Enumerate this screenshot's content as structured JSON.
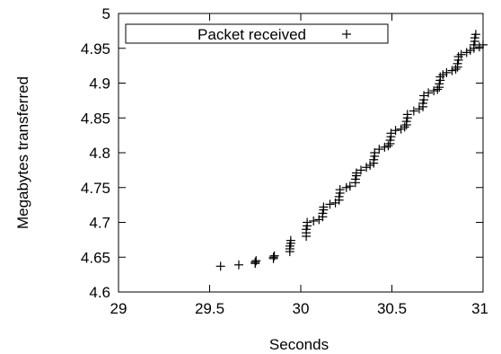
{
  "chart_data": {
    "type": "scatter",
    "title": "",
    "xlabel": "Seconds",
    "ylabel": "Megabytes transferred",
    "xlim": [
      29,
      31
    ],
    "ylim": [
      4.6,
      5.0
    ],
    "xticks": [
      "29",
      "29.5",
      "30",
      "30.5",
      "31"
    ],
    "xtick_values": [
      29,
      29.5,
      30,
      30.5,
      31
    ],
    "yticks": [
      "4.6",
      "4.65",
      "4.7",
      "4.75",
      "4.8",
      "4.85",
      "4.9",
      "4.95",
      "5"
    ],
    "ytick_values": [
      4.6,
      4.65,
      4.7,
      4.75,
      4.8,
      4.85,
      4.9,
      4.95,
      5.0
    ],
    "grid": false,
    "legend_position": "top",
    "series": [
      {
        "name": "Packet received",
        "marker": "+",
        "color": "#000000",
        "points": [
          [
            29.56,
            4.637
          ],
          [
            29.66,
            4.639
          ],
          [
            29.75,
            4.641
          ],
          [
            29.75,
            4.643
          ],
          [
            29.755,
            4.645
          ],
          [
            29.85,
            4.648
          ],
          [
            29.85,
            4.65
          ],
          [
            29.855,
            4.652
          ],
          [
            29.94,
            4.658
          ],
          [
            29.94,
            4.662
          ],
          [
            29.94,
            4.666
          ],
          [
            29.945,
            4.67
          ],
          [
            29.945,
            4.674
          ],
          [
            30.03,
            4.68
          ],
          [
            30.03,
            4.685
          ],
          [
            30.03,
            4.69
          ],
          [
            30.035,
            4.695
          ],
          [
            30.035,
            4.7
          ],
          [
            30.07,
            4.702
          ],
          [
            30.1,
            4.704
          ],
          [
            30.12,
            4.708
          ],
          [
            30.12,
            4.713
          ],
          [
            30.125,
            4.718
          ],
          [
            30.125,
            4.722
          ],
          [
            30.16,
            4.726
          ],
          [
            30.19,
            4.728
          ],
          [
            30.21,
            4.732
          ],
          [
            30.21,
            4.737
          ],
          [
            30.215,
            4.742
          ],
          [
            30.215,
            4.747
          ],
          [
            30.25,
            4.75
          ],
          [
            30.27,
            4.752
          ],
          [
            30.3,
            4.757
          ],
          [
            30.3,
            4.762
          ],
          [
            30.305,
            4.767
          ],
          [
            30.305,
            4.771
          ],
          [
            30.33,
            4.775
          ],
          [
            30.36,
            4.779
          ],
          [
            30.38,
            4.782
          ],
          [
            30.4,
            4.785
          ],
          [
            30.4,
            4.79
          ],
          [
            30.405,
            4.795
          ],
          [
            30.405,
            4.8
          ],
          [
            30.43,
            4.805
          ],
          [
            30.46,
            4.808
          ],
          [
            30.48,
            4.81
          ],
          [
            30.49,
            4.813
          ],
          [
            30.49,
            4.818
          ],
          [
            30.495,
            4.823
          ],
          [
            30.495,
            4.828
          ],
          [
            30.52,
            4.832
          ],
          [
            30.55,
            4.834
          ],
          [
            30.57,
            4.837
          ],
          [
            30.58,
            4.84
          ],
          [
            30.58,
            4.845
          ],
          [
            30.585,
            4.85
          ],
          [
            30.585,
            4.855
          ],
          [
            30.62,
            4.86
          ],
          [
            30.65,
            4.863
          ],
          [
            30.67,
            4.866
          ],
          [
            30.67,
            4.871
          ],
          [
            30.675,
            4.876
          ],
          [
            30.675,
            4.882
          ],
          [
            30.7,
            4.886
          ],
          [
            30.73,
            4.889
          ],
          [
            30.75,
            4.891
          ],
          [
            30.76,
            4.894
          ],
          [
            30.76,
            4.899
          ],
          [
            30.765,
            4.904
          ],
          [
            30.765,
            4.909
          ],
          [
            30.78,
            4.912
          ],
          [
            30.8,
            4.915
          ],
          [
            30.83,
            4.918
          ],
          [
            30.85,
            4.92
          ],
          [
            30.86,
            4.923
          ],
          [
            30.86,
            4.928
          ],
          [
            30.865,
            4.933
          ],
          [
            30.865,
            4.938
          ],
          [
            30.88,
            4.941
          ],
          [
            30.91,
            4.944
          ],
          [
            30.93,
            4.947
          ],
          [
            30.95,
            4.95
          ],
          [
            30.95,
            4.955
          ],
          [
            30.955,
            4.96
          ],
          [
            30.955,
            4.965
          ],
          [
            30.96,
            4.97
          ],
          [
            30.98,
            4.952
          ],
          [
            31.0,
            4.955
          ]
        ]
      }
    ]
  }
}
